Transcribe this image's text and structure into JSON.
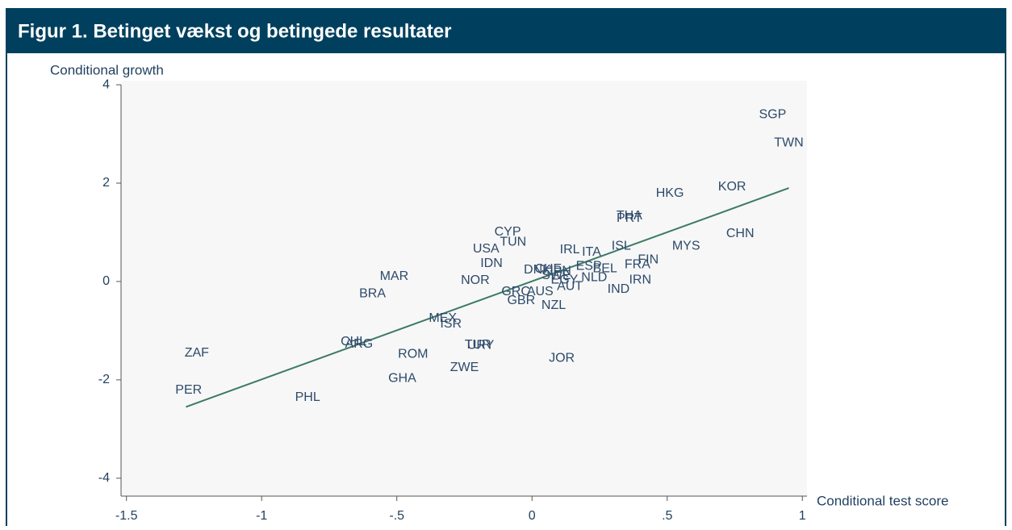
{
  "chart_data": {
    "type": "scatter",
    "title": "Figur 1. Betinget vækst og betingede resultater",
    "y_label": "Conditional growth",
    "x_label": "Conditional test score",
    "labels": [
      "SGP",
      "TWN",
      "HKG",
      "KOR",
      "CHN",
      "MYS",
      "THA",
      "PRT",
      "ISL",
      "FIN",
      "FRA",
      "IRN",
      "IND",
      "IRL",
      "ITA",
      "ESP",
      "BEL",
      "NLD",
      "AUT",
      "NZL",
      "GBR",
      "GRC",
      "CYP",
      "TUN",
      "USA",
      "IDN",
      "NOR",
      "MAR",
      "BRA",
      "MEX",
      "ISR",
      "URY",
      "TUR",
      "CHL",
      "ARG",
      "ROM",
      "ZWE",
      "GHA",
      "JOR",
      "ZAF",
      "PER",
      "PHL",
      "DNK",
      "CHE",
      "JPN",
      "SWE",
      "EGY",
      "AUS"
    ],
    "x": [
      0.89,
      0.95,
      0.51,
      0.74,
      0.77,
      0.57,
      0.36,
      0.36,
      0.33,
      0.43,
      0.39,
      0.4,
      0.32,
      0.14,
      0.22,
      0.21,
      0.27,
      0.23,
      0.14,
      0.08,
      -0.04,
      -0.06,
      -0.09,
      -0.07,
      -0.17,
      -0.15,
      -0.21,
      -0.51,
      -0.59,
      -0.33,
      -0.3,
      -0.19,
      -0.2,
      -0.66,
      -0.64,
      -0.44,
      -0.25,
      -0.48,
      0.11,
      -1.24,
      -1.27,
      -0.83,
      0.02,
      0.06,
      0.1,
      0.09,
      0.12,
      0.03
    ],
    "y": [
      3.39,
      2.82,
      1.79,
      1.92,
      0.97,
      0.72,
      1.33,
      1.28,
      0.72,
      0.44,
      0.34,
      0.03,
      -0.16,
      0.64,
      0.59,
      0.31,
      0.26,
      0.08,
      -0.1,
      -0.49,
      -0.39,
      -0.21,
      1.0,
      0.8,
      0.66,
      0.36,
      0.02,
      0.1,
      -0.25,
      -0.75,
      -0.87,
      -1.3,
      -1.29,
      -1.23,
      -1.28,
      -1.48,
      -1.75,
      -1.97,
      -1.56,
      -1.46,
      -2.21,
      -2.36,
      0.23,
      0.25,
      0.21,
      0.12,
      0.03,
      -0.21
    ],
    "color": "#2d4a6a",
    "fit_line": {
      "x": [
        -1.28,
        0.95
      ],
      "y": [
        -2.55,
        1.9
      ],
      "color": "#3c7a66"
    },
    "xlim": [
      -1.52,
      1.05
    ],
    "ylim": [
      -4.2,
      4.1
    ],
    "xticks": [
      -1.5,
      -1,
      {
        "value": -0.5,
        "label": "-.5"
      },
      0,
      {
        "value": 0.5,
        "label": ".5"
      },
      1
    ],
    "yticks": [
      -4,
      -2,
      0,
      2,
      4
    ]
  }
}
